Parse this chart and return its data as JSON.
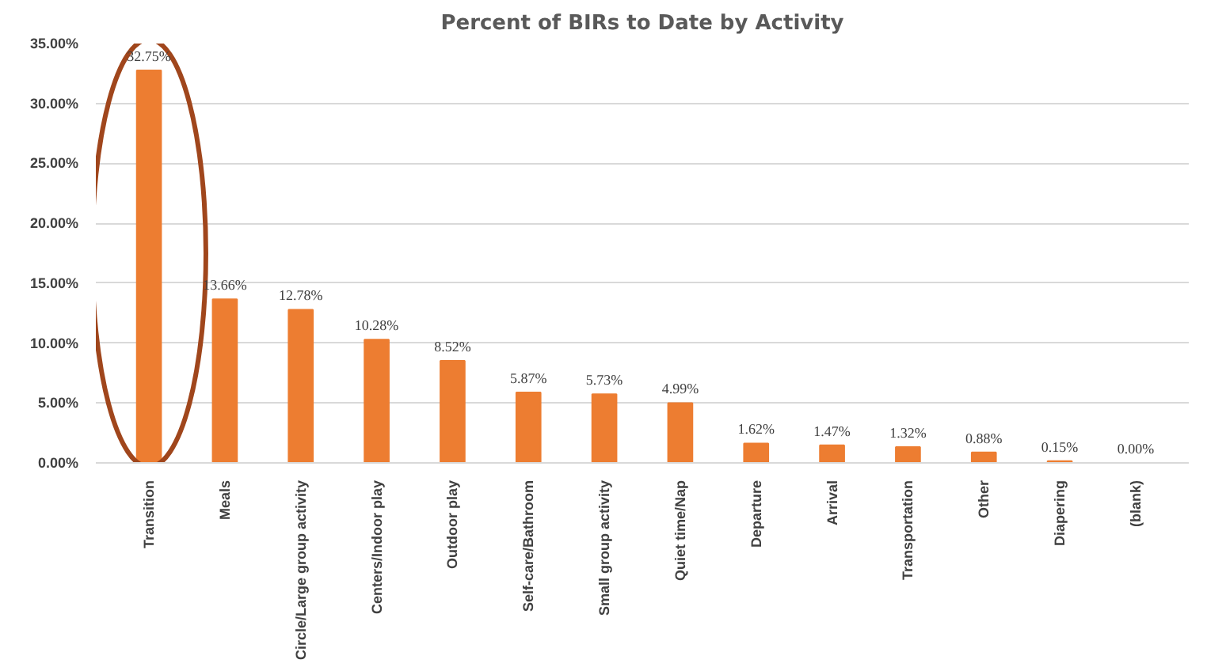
{
  "chart_data": {
    "type": "bar",
    "title": "Percent of BIRs to Date by Activity",
    "categories": [
      "Transition",
      "Meals",
      "Circle/Large group activity",
      "Centers/Indoor play",
      "Outdoor play",
      "Self-care/Bathroom",
      "Small group activity",
      "Quiet time/Nap",
      "Departure",
      "Arrival",
      "Transportation",
      "Other",
      "Diapering",
      "(blank)"
    ],
    "values": [
      32.75,
      13.66,
      12.78,
      10.28,
      8.52,
      5.87,
      5.73,
      4.99,
      1.62,
      1.47,
      1.32,
      0.88,
      0.15,
      0.0
    ],
    "value_labels": [
      "32.75%",
      "13.66%",
      "12.78%",
      "10.28%",
      "8.52%",
      "5.87%",
      "5.73%",
      "4.99%",
      "1.62%",
      "1.47%",
      "1.32%",
      "0.88%",
      "0.15%",
      "0.00%"
    ],
    "color": "#ed7d31",
    "ylim": [
      0,
      35
    ],
    "yticks": [
      {
        "value": 0,
        "label": "0.00%"
      },
      {
        "value": 5,
        "label": "5.00%"
      },
      {
        "value": 10,
        "label": "10.00%"
      },
      {
        "value": 15,
        "label": "15.00%"
      },
      {
        "value": 20,
        "label": "20.00%"
      },
      {
        "value": 25,
        "label": "25.00%"
      },
      {
        "value": 30,
        "label": "30.00%"
      },
      {
        "value": 35,
        "label": "35.00%"
      }
    ],
    "grid": "y"
  }
}
